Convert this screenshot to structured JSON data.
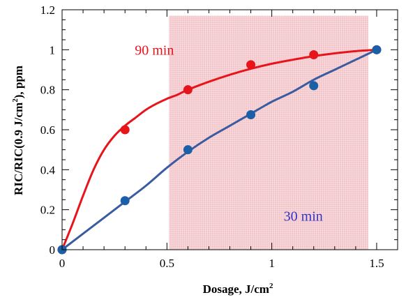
{
  "chart_data": {
    "type": "scatter",
    "xlabel": "Dosage, J/cm",
    "xlabel_sup": "2",
    "ylabel": "RIC/RIC(0.9 J/cm",
    "ylabel_sup": "2",
    "ylabel_tail": "), ppm",
    "xlim": [
      0,
      1.6
    ],
    "ylim": [
      0,
      1.2
    ],
    "xticks": [
      {
        "value": 0,
        "label": "0"
      },
      {
        "value": 0.5,
        "label": "0.5"
      },
      {
        "value": 1,
        "label": "1"
      },
      {
        "value": 1.5,
        "label": "1.5"
      }
    ],
    "yticks": [
      {
        "value": 0,
        "label": "0"
      },
      {
        "value": 0.2,
        "label": "0.2"
      },
      {
        "value": 0.4,
        "label": "0.4"
      },
      {
        "value": 0.6,
        "label": "0.6"
      },
      {
        "value": 0.8,
        "label": "0.8"
      },
      {
        "value": 1,
        "label": "1"
      },
      {
        "value": 1.2,
        "label": "1.2"
      }
    ],
    "shaded_region": {
      "x": [
        0.51,
        1.46
      ],
      "y": [
        0,
        1.17
      ],
      "color": "#f2c4c8"
    },
    "series": [
      {
        "name": "90 min",
        "color": "#e8141b",
        "x": [
          0,
          0.3,
          0.6,
          0.9,
          1.2,
          1.5
        ],
        "y": [
          0,
          0.6,
          0.8,
          0.925,
          0.975,
          1.0
        ],
        "fit": [
          [
            0,
            0
          ],
          [
            0.05,
            0.13
          ],
          [
            0.1,
            0.27
          ],
          [
            0.15,
            0.4
          ],
          [
            0.2,
            0.5
          ],
          [
            0.25,
            0.57
          ],
          [
            0.3,
            0.62
          ],
          [
            0.35,
            0.66
          ],
          [
            0.4,
            0.7
          ],
          [
            0.45,
            0.73
          ],
          [
            0.5,
            0.755
          ],
          [
            0.55,
            0.775
          ],
          [
            0.6,
            0.8
          ],
          [
            0.7,
            0.84
          ],
          [
            0.8,
            0.875
          ],
          [
            0.9,
            0.905
          ],
          [
            1.0,
            0.93
          ],
          [
            1.1,
            0.95
          ],
          [
            1.2,
            0.968
          ],
          [
            1.3,
            0.982
          ],
          [
            1.4,
            0.993
          ],
          [
            1.5,
            1.0
          ]
        ]
      },
      {
        "name": "30 min",
        "color": "#1a5fa8",
        "fit_color": "#3a5ba0",
        "x": [
          0,
          0.3,
          0.6,
          0.9,
          1.2,
          1.5
        ],
        "y": [
          0,
          0.245,
          0.5,
          0.675,
          0.82,
          1.0
        ],
        "fit": [
          [
            0,
            0
          ],
          [
            0.1,
            0.08
          ],
          [
            0.2,
            0.16
          ],
          [
            0.3,
            0.24
          ],
          [
            0.4,
            0.32
          ],
          [
            0.5,
            0.41
          ],
          [
            0.6,
            0.49
          ],
          [
            0.7,
            0.56
          ],
          [
            0.8,
            0.62
          ],
          [
            0.9,
            0.68
          ],
          [
            1.0,
            0.74
          ],
          [
            1.1,
            0.79
          ],
          [
            1.2,
            0.85
          ],
          [
            1.3,
            0.9
          ],
          [
            1.4,
            0.95
          ],
          [
            1.5,
            1.0
          ]
        ]
      }
    ],
    "annotations": [
      {
        "text": "90 min",
        "color": "#e8141b",
        "x": 0.44,
        "y": 1.0
      },
      {
        "text": "30 min",
        "color": "#3232c8",
        "x": 1.15,
        "y": 0.17
      }
    ]
  }
}
